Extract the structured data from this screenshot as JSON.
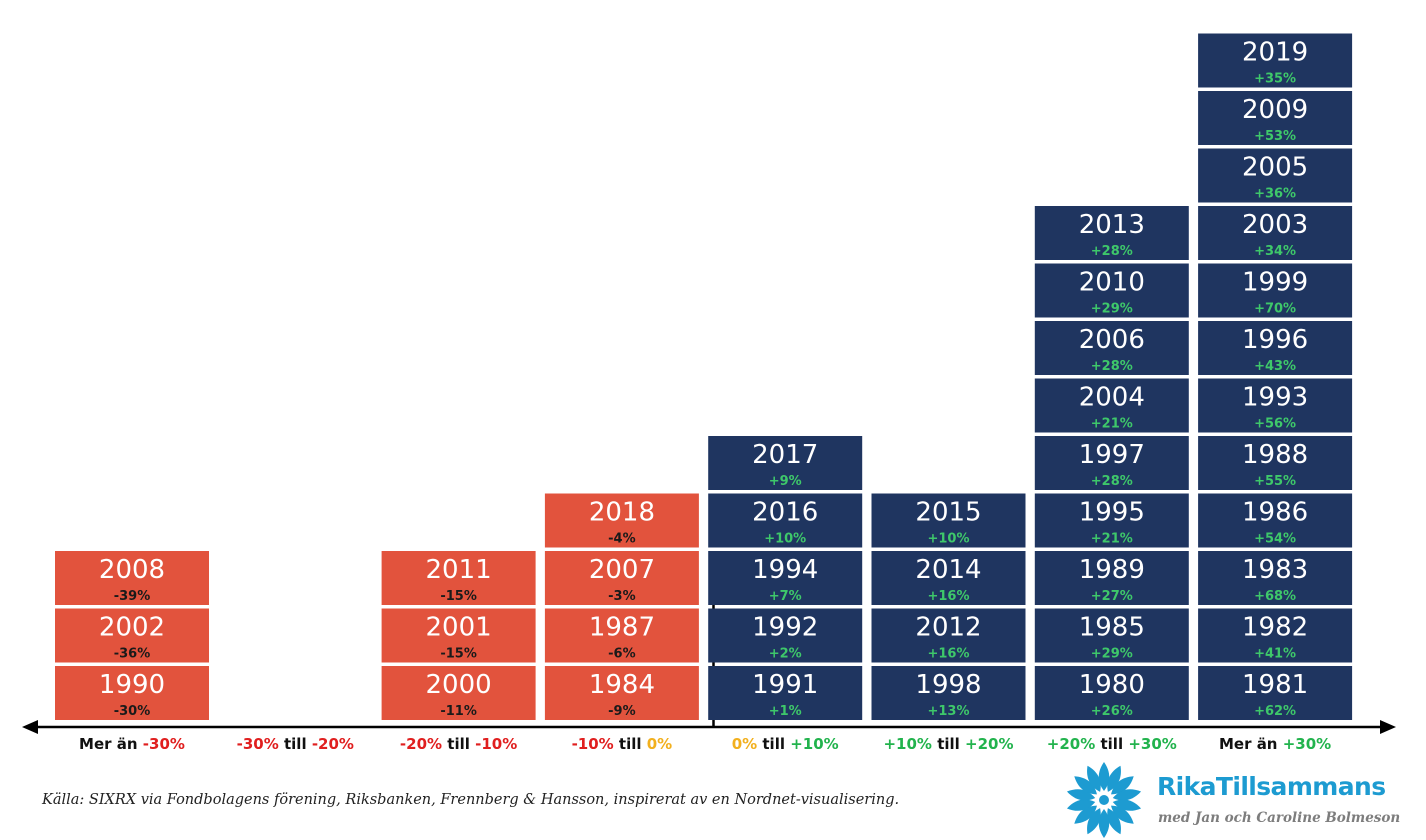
{
  "chart_data": {
    "type": "histogram-blocks",
    "colors": {
      "negative_block": "#e2533d",
      "positive_block": "#1f3560",
      "negative_text": "#e01f1f",
      "neutral_text": "#f2b01e",
      "positive_text": "#22b34d",
      "dark_text": "#111111",
      "negative_return_in_block": "#1a1a1a",
      "positive_return_in_block": "#3ec86a"
    },
    "bins": [
      {
        "label_parts": [
          {
            "text": "Mer än ",
            "tone": "dark"
          },
          {
            "text": "-30%",
            "tone": "negative"
          }
        ],
        "sign": "negative",
        "years": [
          {
            "year": "1990",
            "return": "-30%"
          },
          {
            "year": "2002",
            "return": "-36%"
          },
          {
            "year": "2008",
            "return": "-39%"
          }
        ]
      },
      {
        "label_parts": [
          {
            "text": "-30%",
            "tone": "negative"
          },
          {
            "text": " till ",
            "tone": "dark"
          },
          {
            "text": "-20%",
            "tone": "negative"
          }
        ],
        "sign": "negative",
        "years": []
      },
      {
        "label_parts": [
          {
            "text": "-20%",
            "tone": "negative"
          },
          {
            "text": " till ",
            "tone": "dark"
          },
          {
            "text": "-10%",
            "tone": "negative"
          }
        ],
        "sign": "negative",
        "years": [
          {
            "year": "2000",
            "return": "-11%"
          },
          {
            "year": "2001",
            "return": "-15%"
          },
          {
            "year": "2011",
            "return": "-15%"
          }
        ]
      },
      {
        "label_parts": [
          {
            "text": "-10%",
            "tone": "negative"
          },
          {
            "text": " till ",
            "tone": "dark"
          },
          {
            "text": "0%",
            "tone": "neutral"
          }
        ],
        "sign": "negative",
        "years": [
          {
            "year": "1984",
            "return": "-9%"
          },
          {
            "year": "1987",
            "return": "-6%"
          },
          {
            "year": "2007",
            "return": "-3%"
          },
          {
            "year": "2018",
            "return": "-4%"
          }
        ]
      },
      {
        "label_parts": [
          {
            "text": "0%",
            "tone": "neutral"
          },
          {
            "text": " till ",
            "tone": "dark"
          },
          {
            "text": "+10%",
            "tone": "positive"
          }
        ],
        "sign": "positive",
        "years": [
          {
            "year": "1991",
            "return": "+1%"
          },
          {
            "year": "1992",
            "return": "+2%"
          },
          {
            "year": "1994",
            "return": "+7%"
          },
          {
            "year": "2016",
            "return": "+10%"
          },
          {
            "year": "2017",
            "return": "+9%"
          }
        ]
      },
      {
        "label_parts": [
          {
            "text": "+10%",
            "tone": "positive"
          },
          {
            "text": " till ",
            "tone": "dark"
          },
          {
            "text": "+20%",
            "tone": "positive"
          }
        ],
        "sign": "positive",
        "years": [
          {
            "year": "1998",
            "return": "+13%"
          },
          {
            "year": "2012",
            "return": "+16%"
          },
          {
            "year": "2014",
            "return": "+16%"
          },
          {
            "year": "2015",
            "return": "+10%"
          }
        ]
      },
      {
        "label_parts": [
          {
            "text": "+20%",
            "tone": "positive"
          },
          {
            "text": " till ",
            "tone": "dark"
          },
          {
            "text": "+30%",
            "tone": "positive"
          }
        ],
        "sign": "positive",
        "years": [
          {
            "year": "1980",
            "return": "+26%"
          },
          {
            "year": "1985",
            "return": "+29%"
          },
          {
            "year": "1989",
            "return": "+27%"
          },
          {
            "year": "1995",
            "return": "+21%"
          },
          {
            "year": "1997",
            "return": "+28%"
          },
          {
            "year": "2004",
            "return": "+21%"
          },
          {
            "year": "2006",
            "return": "+28%"
          },
          {
            "year": "2010",
            "return": "+29%"
          },
          {
            "year": "2013",
            "return": "+28%"
          }
        ]
      },
      {
        "label_parts": [
          {
            "text": "Mer än ",
            "tone": "dark"
          },
          {
            "text": "+30%",
            "tone": "positive"
          }
        ],
        "sign": "positive",
        "years": [
          {
            "year": "1981",
            "return": "+62%"
          },
          {
            "year": "1982",
            "return": "+41%"
          },
          {
            "year": "1983",
            "return": "+68%"
          },
          {
            "year": "1986",
            "return": "+54%"
          },
          {
            "year": "1988",
            "return": "+55%"
          },
          {
            "year": "1993",
            "return": "+56%"
          },
          {
            "year": "1996",
            "return": "+43%"
          },
          {
            "year": "1999",
            "return": "+70%"
          },
          {
            "year": "2003",
            "return": "+34%"
          },
          {
            "year": "2005",
            "return": "+36%"
          },
          {
            "year": "2009",
            "return": "+53%"
          },
          {
            "year": "2019",
            "return": "+35%"
          }
        ]
      }
    ]
  },
  "footer": {
    "source": "Källa: SIXRX via Fondbolagens förening, Riksbanken, Frennberg & Hansson, inspirerat av en Nordnet-visualisering."
  },
  "logo": {
    "name": "RikaTillsammans",
    "tagline": "med Jan och Caroline Bolmeson",
    "color": "#1d9bd1",
    "icon": "sun-burst-icon"
  }
}
